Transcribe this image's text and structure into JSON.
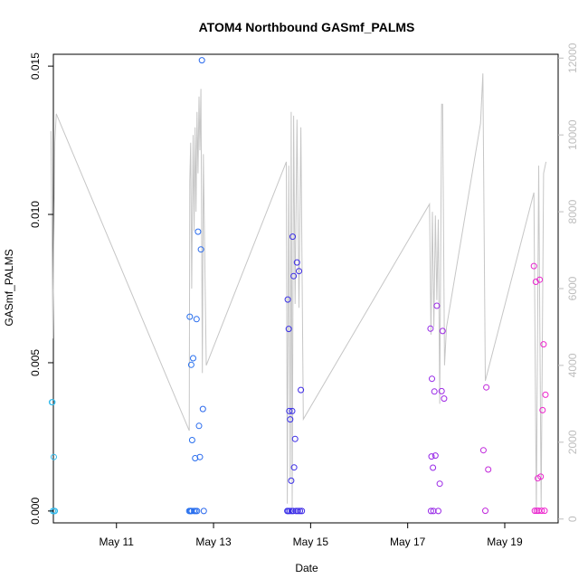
{
  "chart_data": {
    "type": "scatter",
    "title": "ATOM4 Northbound GASmf_PALMS",
    "xlabel": "Date",
    "ylabel": "GASmf_PALMS",
    "x_unit": "days since May 10",
    "xlim": [
      -0.3,
      10.1
    ],
    "ylim": [
      -0.0004,
      0.0154
    ],
    "y2lim": [
      -100,
      12100
    ],
    "x_ticks": [
      {
        "value": 1,
        "label": "May 11"
      },
      {
        "value": 3,
        "label": "May 13"
      },
      {
        "value": 5,
        "label": "May 15"
      },
      {
        "value": 7,
        "label": "May 17"
      },
      {
        "value": 9,
        "label": "May 19"
      }
    ],
    "y_ticks": [
      {
        "value": 0.0,
        "label": "0.000"
      },
      {
        "value": 0.005,
        "label": "0.005"
      },
      {
        "value": 0.01,
        "label": "0.010"
      },
      {
        "value": 0.015,
        "label": "0.015"
      }
    ],
    "y2_ticks": [
      {
        "value": 0,
        "label": "0"
      },
      {
        "value": 2000,
        "label": "2000"
      },
      {
        "value": 4000,
        "label": "4000"
      },
      {
        "value": 6000,
        "label": "6000"
      },
      {
        "value": 8000,
        "label": "8000"
      },
      {
        "value": 10000,
        "label": "10000"
      },
      {
        "value": 12000,
        "label": "12000"
      }
    ],
    "series": [
      {
        "name": "GASmf_PALMS",
        "kind": "points",
        "x": [
          -0.33,
          -0.32,
          -0.31,
          -0.29,
          -0.28,
          -0.27,
          2.5,
          2.51,
          2.52,
          2.53,
          2.54,
          2.55,
          2.56,
          2.58,
          2.6,
          2.62,
          2.63,
          2.65,
          2.66,
          2.68,
          2.7,
          2.72,
          2.74,
          2.76,
          2.78,
          2.8,
          4.52,
          4.53,
          4.54,
          4.55,
          4.56,
          4.57,
          4.58,
          4.6,
          4.61,
          4.62,
          4.63,
          4.64,
          4.65,
          4.66,
          4.68,
          4.7,
          4.72,
          4.74,
          4.76,
          4.78,
          4.8,
          4.82,
          7.47,
          7.48,
          7.49,
          7.5,
          7.52,
          7.53,
          7.55,
          7.57,
          7.6,
          7.63,
          7.66,
          7.7,
          7.72,
          7.75,
          8.56,
          8.6,
          8.62,
          8.66,
          9.6,
          9.62,
          9.64,
          9.66,
          9.68,
          9.7,
          9.72,
          9.74,
          9.76,
          9.78,
          9.8,
          9.82,
          9.84
        ],
        "y": [
          0.00367,
          0.00367,
          0.0,
          0.00182,
          0.0,
          0.0,
          0.0,
          0.00655,
          0.0,
          0.0,
          0.00493,
          0.0,
          0.00239,
          0.00515,
          0.0,
          0.00178,
          0.0,
          0.00647,
          0.0,
          0.00942,
          0.00287,
          0.00182,
          0.00882,
          0.0152,
          0.00344,
          0.0,
          0.0,
          0.00713,
          0.0,
          0.00614,
          0.00337,
          0.0,
          0.00309,
          0.00102,
          0.0,
          0.00337,
          0.00925,
          0.0,
          0.00792,
          0.00147,
          0.00243,
          0.0,
          0.00838,
          0.0,
          0.00809,
          0.0,
          0.00408,
          0.0,
          0.00615,
          0.0,
          0.00184,
          0.00446,
          0.00146,
          0.0,
          0.00403,
          0.00187,
          0.00692,
          0.0,
          0.00092,
          0.00404,
          0.00607,
          0.00379,
          0.00205,
          1e-05,
          0.00417,
          0.0014,
          0.00826,
          1e-05,
          0.00773,
          1e-05,
          0.0011,
          1e-05,
          0.0078,
          0.00116,
          1e-05,
          0.0034,
          0.00562,
          1e-05,
          0.00392
        ],
        "color": "gradient cyan-blue-magenta"
      },
      {
        "name": "secondary axis (grey line)",
        "kind": "line",
        "axis": "right",
        "color": "#c6c6c6",
        "x": [
          -0.35,
          -0.31,
          -0.27,
          -0.24,
          2.5,
          2.51,
          2.53,
          2.55,
          2.58,
          2.6,
          2.62,
          2.64,
          2.66,
          2.68,
          2.7,
          2.72,
          2.74,
          2.77,
          2.79,
          2.85,
          4.5,
          4.52,
          4.55,
          4.58,
          4.6,
          4.62,
          4.65,
          4.68,
          4.72,
          4.76,
          4.8,
          4.85,
          7.45,
          7.48,
          7.51,
          7.54,
          7.57,
          7.6,
          7.63,
          7.66,
          7.7,
          7.72,
          7.76,
          7.8,
          8.5,
          8.55,
          8.6,
          9.6,
          9.65,
          9.7,
          9.75,
          9.8,
          9.85
        ],
        "y": [
          10100,
          4700,
          9800,
          10550,
          2300,
          8800,
          9800,
          6000,
          10000,
          7500,
          10200,
          8000,
          10600,
          9000,
          11000,
          9600,
          11200,
          3800,
          9500,
          4000,
          9300,
          400,
          9200,
          1000,
          10600,
          300,
          10500,
          5600,
          10400,
          5500,
          10200,
          2600,
          8200,
          4800,
          8000,
          5000,
          7900,
          5700,
          7800,
          3000,
          10800,
          10800,
          4000,
          5000,
          10300,
          11600,
          3600,
          8500,
          200,
          9200,
          300,
          9000,
          9300
        ]
      }
    ]
  }
}
